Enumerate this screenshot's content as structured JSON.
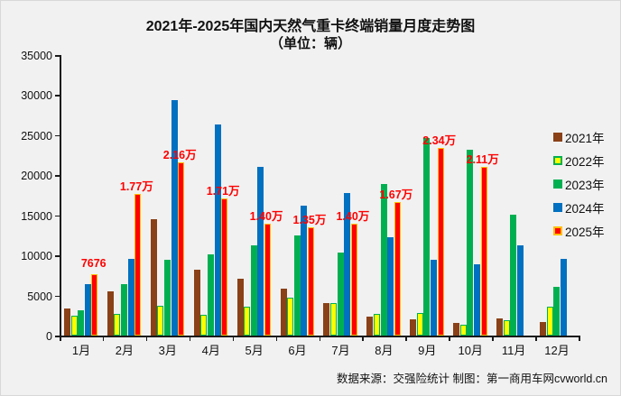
{
  "title": {
    "line1": "2021年-2025年国内天然气重卡终端销量月度走势图",
    "line2": "（单位：辆）"
  },
  "footer": {
    "credit": "数据来源：交强险统计  制图：第一商用车网cvworld.cn"
  },
  "colors": {
    "background": "#f1f1f1",
    "axis": "#1a1a1a",
    "annotation": "#fe0000",
    "series_2021": "#8a4117",
    "series_2022_fill": "#ffff00",
    "series_2022_border": "#00b050",
    "series_2023": "#00b050",
    "series_2024": "#0070c0",
    "series_2025_fill": "#fe0000",
    "series_2025_border": "#ffc000"
  },
  "chart_data": {
    "type": "bar",
    "title": "2021年-2025年国内天然气重卡终端销量月度走势图",
    "subtitle": "（单位：辆）",
    "unit": "辆",
    "xlabel": "",
    "ylabel": "",
    "ylim": [
      0,
      35000
    ],
    "ytick_step": 5000,
    "grid": false,
    "legend_position": "right",
    "categories": [
      "1月",
      "2月",
      "3月",
      "4月",
      "5月",
      "6月",
      "7月",
      "8月",
      "9月",
      "10月",
      "11月",
      "12月"
    ],
    "series": [
      {
        "name": "2021年",
        "fill": "#8a4117",
        "border": "#8a4117",
        "values": [
          3400,
          5500,
          14500,
          8200,
          7100,
          5900,
          4000,
          2400,
          2000,
          1600,
          2100,
          1700
        ]
      },
      {
        "name": "2022年",
        "fill": "#ffff00",
        "border": "#00b050",
        "values": [
          2500,
          2700,
          3700,
          2600,
          3600,
          4700,
          4100,
          2700,
          2800,
          1400,
          1900,
          3600
        ]
      },
      {
        "name": "2023年",
        "fill": "#00b050",
        "border": "#00b050",
        "values": [
          3100,
          6400,
          9500,
          10100,
          11200,
          12500,
          10400,
          18900,
          24600,
          23200,
          15100,
          6100
        ]
      },
      {
        "name": "2024年",
        "fill": "#0070c0",
        "border": "#0070c0",
        "values": [
          6400,
          9600,
          29400,
          26300,
          21000,
          16200,
          17800,
          12300,
          9400,
          8900,
          11300,
          9600
        ]
      },
      {
        "name": "2025年",
        "fill": "#fe0000",
        "border": "#ffc000",
        "values": [
          7676,
          17700,
          21600,
          17100,
          14000,
          13500,
          14000,
          16700,
          23400,
          21100,
          null,
          null
        ]
      }
    ],
    "annotations": [
      "7676",
      "1.77万",
      "2.16万",
      "1.71万",
      "1.40万",
      "1.35万",
      "1.40万",
      "1.67万",
      "2.34万",
      "2.11万",
      null,
      null
    ]
  }
}
